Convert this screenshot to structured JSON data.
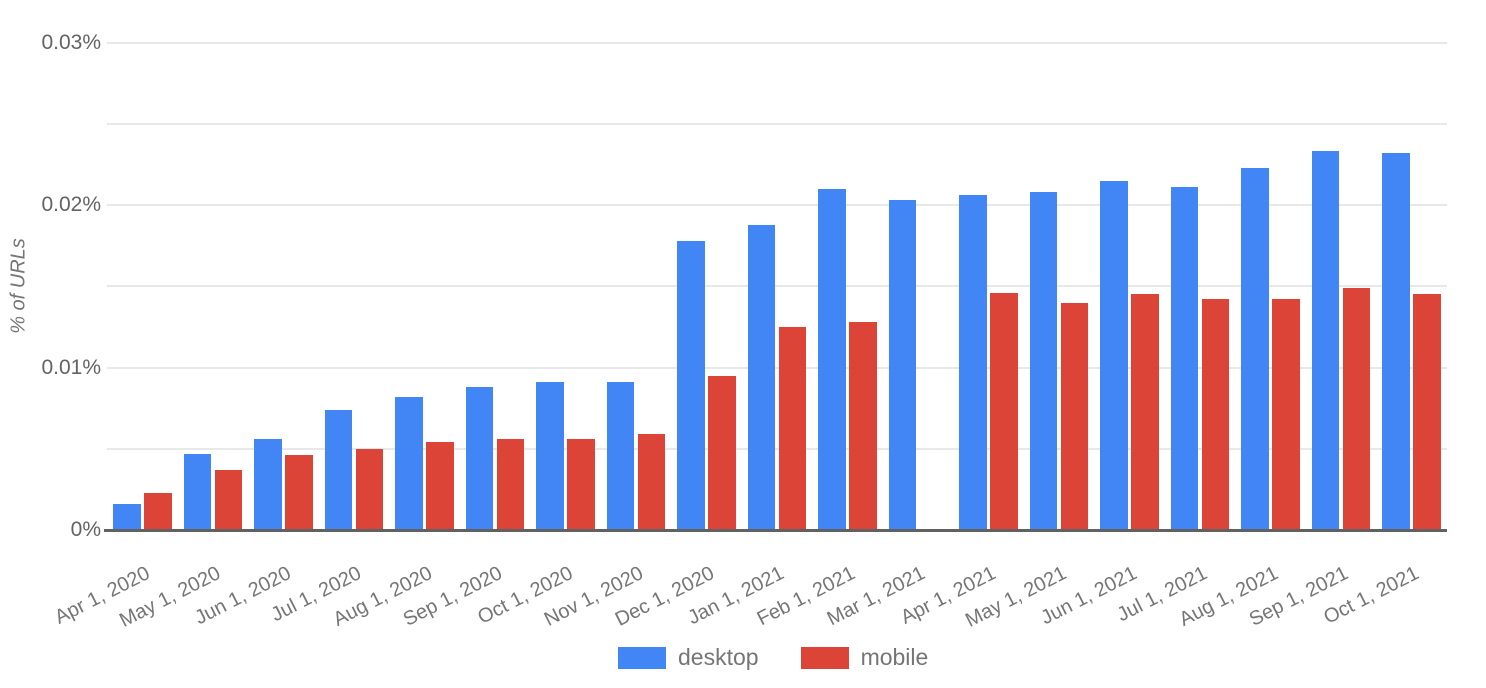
{
  "chart_data": {
    "type": "bar",
    "title": "",
    "xlabel": "",
    "ylabel": "% of URLs",
    "categories": [
      "Apr 1, 2020",
      "May 1, 2020",
      "Jun 1, 2020",
      "Jul 1, 2020",
      "Aug 1, 2020",
      "Sep 1, 2020",
      "Oct 1, 2020",
      "Nov 1, 2020",
      "Dec 1, 2020",
      "Jan 1, 2021",
      "Feb 1, 2021",
      "Mar 1, 2021",
      "Apr 1, 2021",
      "May 1, 2021",
      "Jun 1, 2021",
      "Jul 1, 2021",
      "Aug 1, 2021",
      "Sep 1, 2021",
      "Oct 1, 2021"
    ],
    "series": [
      {
        "name": "desktop",
        "color": "#4285F4",
        "values": [
          0.0016,
          0.0047,
          0.0056,
          0.0074,
          0.0082,
          0.0088,
          0.0091,
          0.0091,
          0.0178,
          0.0188,
          0.021,
          0.0203,
          0.0206,
          0.0208,
          0.0215,
          0.0211,
          0.0223,
          0.0233,
          0.0232
        ]
      },
      {
        "name": "mobile",
        "color": "#DB4437",
        "values": [
          0.0023,
          0.0037,
          0.0046,
          0.005,
          0.0054,
          0.0056,
          0.0056,
          0.0059,
          0.0095,
          0.0125,
          0.0128,
          null,
          0.0146,
          0.014,
          0.0145,
          0.0142,
          0.0142,
          0.0149,
          0.0145
        ]
      }
    ],
    "y_axis": {
      "min": 0,
      "max": 0.03,
      "unit": "%",
      "tick_step": 0.01,
      "gridline_step": 0.005,
      "tick_labels": [
        "0%",
        "0.01%",
        "0.02%",
        "0.03%"
      ]
    },
    "grid": true,
    "legend_position": "bottom"
  },
  "colors": {
    "gridline": "#E8E8E8",
    "axis_line": "#616161",
    "y_tick_text": "#636363",
    "x_tick_text": "#757575",
    "legend_text": "#757575",
    "background": "#FFFFFF"
  }
}
